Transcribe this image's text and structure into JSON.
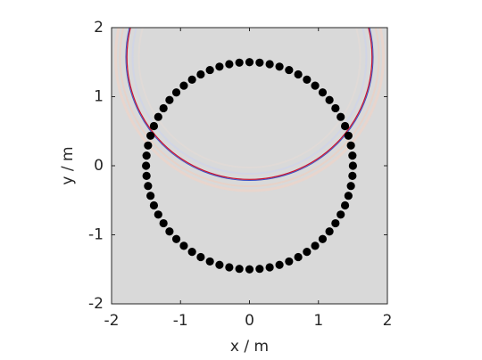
{
  "chart_data": {
    "type": "scatter",
    "xlabel": "x / m",
    "ylabel": "y / m",
    "color": "#000000",
    "xlim": [
      -2,
      2
    ],
    "ylim": [
      -2,
      2
    ],
    "xticks": [
      -2,
      -1,
      0,
      1,
      2
    ],
    "yticks": [
      -2,
      -1,
      0,
      1,
      2
    ],
    "x": [
      1.5,
      1.493,
      1.471,
      1.435,
      1.386,
      1.323,
      1.247,
      1.16,
      1.061,
      0.952,
      0.833,
      0.707,
      0.574,
      0.435,
      0.293,
      0.147,
      0,
      -0.147,
      -0.293,
      -0.435,
      -0.574,
      -0.707,
      -0.833,
      -0.952,
      -1.061,
      -1.16,
      -1.247,
      -1.323,
      -1.386,
      -1.435,
      -1.471,
      -1.493,
      -1.5,
      -1.493,
      -1.471,
      -1.435,
      -1.386,
      -1.323,
      -1.247,
      -1.16,
      -1.061,
      -0.952,
      -0.833,
      -0.707,
      -0.574,
      -0.435,
      -0.293,
      -0.147,
      0,
      0.147,
      0.293,
      0.435,
      0.574,
      0.707,
      0.833,
      0.952,
      1.061,
      1.16,
      1.247,
      1.323,
      1.386,
      1.435,
      1.471,
      1.493
    ],
    "values": [
      0,
      0.147,
      0.293,
      0.435,
      0.574,
      0.707,
      0.833,
      0.952,
      1.061,
      1.16,
      1.247,
      1.323,
      1.386,
      1.435,
      1.471,
      1.493,
      1.5,
      1.493,
      1.471,
      1.435,
      1.386,
      1.323,
      1.247,
      1.16,
      1.061,
      0.952,
      0.833,
      0.707,
      0.574,
      0.435,
      0.293,
      0.147,
      0,
      -0.147,
      -0.293,
      -0.435,
      -0.574,
      -0.707,
      -0.833,
      -0.952,
      -1.061,
      -1.16,
      -1.247,
      -1.323,
      -1.386,
      -1.435,
      -1.471,
      -1.493,
      -1.5,
      -1.493,
      -1.471,
      -1.435,
      -1.386,
      -1.323,
      -1.247,
      -1.16,
      -1.061,
      -0.952,
      -0.833,
      -0.707,
      -0.574,
      -0.435,
      -0.293,
      -0.147
    ]
  }
}
